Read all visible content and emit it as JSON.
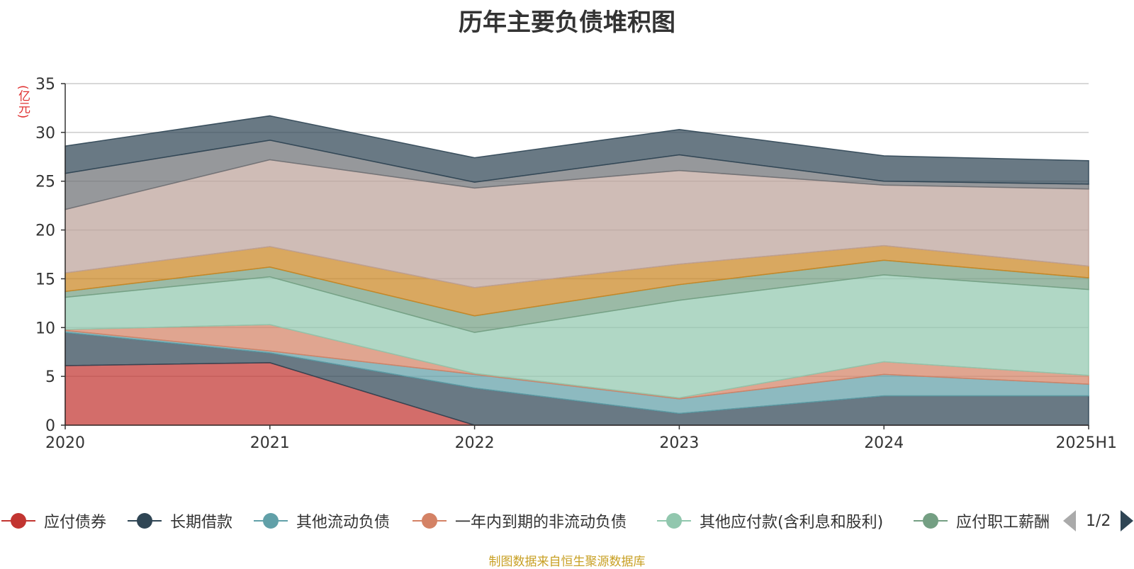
{
  "chart_data": {
    "type": "area",
    "stacked": true,
    "title": "历年主要负债堆积图",
    "y_unit_label": "(亿元)",
    "categories": [
      "2020",
      "2021",
      "2022",
      "2023",
      "2024",
      "2025H1"
    ],
    "ylim": [
      0,
      35
    ],
    "yticks": [
      0,
      5,
      10,
      15,
      20,
      25,
      30,
      35
    ],
    "grid": true,
    "series": [
      {
        "name": "应付债券",
        "color": "#c23531",
        "values": [
          6.1,
          6.4,
          0.0,
          0.0,
          0.0,
          0.0
        ]
      },
      {
        "name": "长期借款",
        "color": "#2f4554",
        "values": [
          3.4,
          1.0,
          3.8,
          1.2,
          3.0,
          3.0
        ]
      },
      {
        "name": "其他流动负债",
        "color": "#61a0a8",
        "values": [
          0.2,
          0.2,
          1.4,
          1.5,
          2.2,
          1.2
        ]
      },
      {
        "name": "一年内到期的非流动负债",
        "color": "#d48265",
        "values": [
          0.1,
          2.7,
          0.1,
          0.1,
          1.3,
          0.9
        ]
      },
      {
        "name": "其他应付款(含利息和股利)",
        "color": "#91c7ae",
        "values": [
          3.3,
          4.9,
          4.2,
          10.0,
          8.9,
          8.8
        ]
      },
      {
        "name": "应付职工薪酬",
        "color": "#749f83",
        "values": [
          0.6,
          1.0,
          1.7,
          1.6,
          1.5,
          1.2
        ]
      },
      {
        "name": "",
        "color": "#ca8622",
        "values": [
          1.9,
          2.1,
          2.9,
          2.1,
          1.5,
          1.2
        ]
      },
      {
        "name": "",
        "color": "#bda29a",
        "values": [
          6.5,
          8.9,
          10.2,
          9.6,
          6.2,
          7.9
        ]
      },
      {
        "name": "",
        "color": "#6e7074",
        "values": [
          3.7,
          2.0,
          0.6,
          1.6,
          0.4,
          0.5
        ]
      },
      {
        "name": "",
        "color": "#2f4554",
        "values": [
          2.8,
          2.5,
          2.5,
          2.6,
          2.6,
          2.4
        ]
      }
    ]
  },
  "legend": {
    "items": [
      {
        "label": "应付债券",
        "color": "#c23531"
      },
      {
        "label": "长期借款",
        "color": "#2f4554"
      },
      {
        "label": "其他流动负债",
        "color": "#61a0a8"
      },
      {
        "label": "一年内到期的非流动负债",
        "color": "#d48265"
      },
      {
        "label": "其他应付款(含利息和股利)",
        "color": "#91c7ae"
      },
      {
        "label": "应付职工薪酬",
        "color": "#749f83"
      }
    ],
    "page_text": "1/2"
  },
  "source_note": "制图数据来自恒生聚源数据库"
}
